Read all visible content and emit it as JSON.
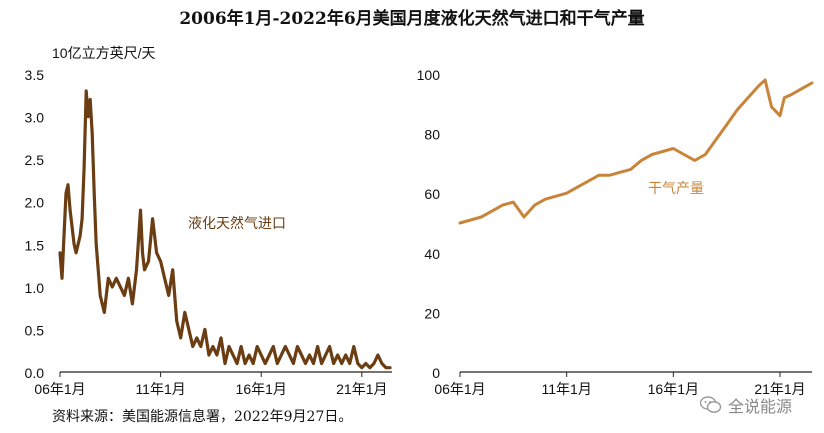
{
  "title": "2006年1月-2022年6月美国月度液化天然气进口和干气产量",
  "source": "资料来源：美国能源信息署，2022年9月27日。",
  "watermark": "全说能源",
  "chart_data": [
    {
      "type": "line",
      "ylabel": "10亿立方英尺/天",
      "ylim": [
        0,
        3.5
      ],
      "yticks": [
        "0.0",
        "0.5",
        "1.0",
        "1.5",
        "2.0",
        "2.5",
        "3.0",
        "3.5"
      ],
      "xticks": [
        "06年1月",
        "11年1月",
        "16年1月",
        "21年1月"
      ],
      "xlim": [
        2006.0,
        2022.5
      ],
      "color": "#6b3d12",
      "series": [
        {
          "name": "液化天然气进口",
          "x": [
            2006.0,
            2006.1,
            2006.2,
            2006.3,
            2006.4,
            2006.5,
            2006.6,
            2006.7,
            2006.8,
            2006.9,
            2007.0,
            2007.1,
            2007.2,
            2007.3,
            2007.4,
            2007.5,
            2007.6,
            2007.7,
            2007.8,
            2007.9,
            2008.0,
            2008.2,
            2008.4,
            2008.6,
            2008.8,
            2009.0,
            2009.2,
            2009.4,
            2009.6,
            2009.8,
            2010.0,
            2010.1,
            2010.2,
            2010.4,
            2010.6,
            2010.8,
            2011.0,
            2011.1,
            2011.2,
            2011.4,
            2011.6,
            2011.8,
            2012.0,
            2012.2,
            2012.4,
            2012.6,
            2012.8,
            2013.0,
            2013.2,
            2013.4,
            2013.6,
            2013.8,
            2014.0,
            2014.2,
            2014.4,
            2014.6,
            2014.8,
            2015.0,
            2015.2,
            2015.4,
            2015.6,
            2015.8,
            2016.0,
            2016.2,
            2016.4,
            2016.6,
            2016.8,
            2017.0,
            2017.2,
            2017.4,
            2017.6,
            2017.8,
            2018.0,
            2018.2,
            2018.4,
            2018.6,
            2018.8,
            2019.0,
            2019.2,
            2019.4,
            2019.6,
            2019.8,
            2020.0,
            2020.2,
            2020.4,
            2020.6,
            2020.8,
            2021.0,
            2021.2,
            2021.4,
            2021.6,
            2021.8,
            2022.0,
            2022.2,
            2022.4
          ],
          "values": [
            1.4,
            1.1,
            1.6,
            2.1,
            2.2,
            1.9,
            1.7,
            1.5,
            1.4,
            1.5,
            1.6,
            1.8,
            2.4,
            3.3,
            3.0,
            3.2,
            2.8,
            2.1,
            1.5,
            1.2,
            0.9,
            0.7,
            1.1,
            1.0,
            1.1,
            1.0,
            0.9,
            1.1,
            0.8,
            1.2,
            1.9,
            1.4,
            1.2,
            1.3,
            1.8,
            1.4,
            1.3,
            1.2,
            1.1,
            0.9,
            1.2,
            0.6,
            0.4,
            0.7,
            0.5,
            0.3,
            0.4,
            0.3,
            0.5,
            0.2,
            0.3,
            0.2,
            0.4,
            0.1,
            0.3,
            0.2,
            0.1,
            0.3,
            0.1,
            0.2,
            0.1,
            0.3,
            0.2,
            0.1,
            0.2,
            0.3,
            0.1,
            0.2,
            0.3,
            0.2,
            0.1,
            0.3,
            0.2,
            0.1,
            0.2,
            0.1,
            0.3,
            0.1,
            0.2,
            0.3,
            0.1,
            0.2,
            0.1,
            0.2,
            0.1,
            0.3,
            0.1,
            0.05,
            0.1,
            0.05,
            0.1,
            0.2,
            0.1,
            0.05,
            0.05
          ]
        }
      ]
    },
    {
      "type": "line",
      "ylim": [
        0,
        100
      ],
      "yticks": [
        "0",
        "20",
        "40",
        "60",
        "80",
        "100"
      ],
      "xticks": [
        "06年1月",
        "11年1月",
        "16年1月",
        "21年1月"
      ],
      "xlim": [
        2006.0,
        2022.5
      ],
      "color": "#c8853a",
      "series": [
        {
          "name": "干气产量",
          "x": [
            2006.0,
            2006.5,
            2007.0,
            2007.5,
            2008.0,
            2008.5,
            2009.0,
            2009.5,
            2010.0,
            2010.5,
            2011.0,
            2011.5,
            2012.0,
            2012.5,
            2013.0,
            2013.5,
            2014.0,
            2014.5,
            2015.0,
            2015.5,
            2016.0,
            2016.5,
            2017.0,
            2017.5,
            2018.0,
            2018.5,
            2019.0,
            2019.5,
            2020.0,
            2020.3,
            2020.6,
            2021.0,
            2021.2,
            2021.5,
            2022.0,
            2022.5
          ],
          "values": [
            50,
            51,
            52,
            54,
            56,
            57,
            52,
            56,
            58,
            59,
            60,
            62,
            64,
            66,
            66,
            67,
            68,
            71,
            73,
            74,
            75,
            73,
            71,
            73,
            78,
            83,
            88,
            92,
            96,
            98,
            89,
            86,
            92,
            93,
            95,
            97
          ]
        }
      ]
    }
  ]
}
